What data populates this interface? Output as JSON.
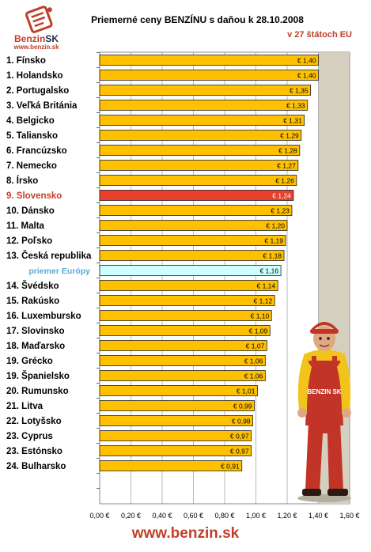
{
  "header": {
    "title": "Priemerné ceny BENZÍNU s daňou k 28.10.2008",
    "subtitle": "v 27 štátoch EU",
    "logo_text_a": "Benzin",
    "logo_text_b": "SK",
    "logo_url": "www.benzin.sk",
    "figure_label": "BENZIN SK"
  },
  "footer": {
    "url": "www.benzin.sk"
  },
  "colors": {
    "bar": "#ffc000",
    "bar_highlight": "#e8402a",
    "bar_average": "#ccffff",
    "plot_bg": "#d5cfbf",
    "highlight_text": "#c0402a",
    "average_text": "#5aa9d6",
    "brand": "#c0402a"
  },
  "chart_data": {
    "type": "bar",
    "orientation": "horizontal",
    "title": "Priemerné ceny BENZÍNU s daňou k 28.10.2008",
    "subtitle": "v 27 štátoch EU",
    "xlim": [
      0,
      1.6
    ],
    "grid": true,
    "categories": [
      "1. Fínsko",
      "1. Holandsko",
      "2. Portugalsko",
      "3. Veľká Británia",
      "4. Belgicko",
      "5. Taliansko",
      "6. Francúzsko",
      "7. Nemecko",
      "8. Írsko",
      "9. Slovensko",
      "10. Dánsko",
      "11. Malta",
      "12. Poľsko",
      "13. Česká republika",
      "priemer Európy",
      "14. Švédsko",
      "15. Rakúsko",
      "16. Luxembursko",
      "17. Slovinsko",
      "18. Maďarsko",
      "19. Grécko",
      "19. Španielsko",
      "20. Rumunsko",
      "21. Litva",
      "22. Lotyšsko",
      "23. Cyprus",
      "23. Estónsko",
      "24. Bulharsko"
    ],
    "values": [
      1.4,
      1.4,
      1.35,
      1.33,
      1.31,
      1.29,
      1.28,
      1.27,
      1.26,
      1.24,
      1.23,
      1.2,
      1.19,
      1.18,
      1.16,
      1.14,
      1.12,
      1.1,
      1.09,
      1.07,
      1.06,
      1.06,
      1.01,
      0.99,
      0.98,
      0.97,
      0.97,
      0.91
    ],
    "value_labels": [
      "€ 1,40",
      "€ 1,40",
      "€ 1,35",
      "€ 1,33",
      "€ 1,31",
      "€ 1,29",
      "€ 1,28",
      "€ 1,27",
      "€ 1,26",
      "€ 1,24",
      "€ 1,23",
      "€ 1,20",
      "€ 1,19",
      "€ 1,18",
      "€ 1,16",
      "€ 1,14",
      "€ 1,12",
      "€ 1,10",
      "€ 1,09",
      "€ 1,07",
      "€ 1,06",
      "€ 1,06",
      "€ 1,01",
      "€ 0,99",
      "€ 0,98",
      "€ 0,97",
      "€ 0,97",
      "€ 0,91"
    ],
    "highlight_category": "9. Slovensko",
    "average_category": "priemer Európy",
    "x_ticks": [
      0,
      0.2,
      0.4,
      0.6,
      0.8,
      1.0,
      1.2,
      1.4,
      1.6
    ],
    "x_tick_labels": [
      "0,00 €",
      "0,20 €",
      "0,40 €",
      "0,60 €",
      "0,80 €",
      "1,00 €",
      "1,20 €",
      "1,40 €",
      "1,60 €"
    ]
  }
}
